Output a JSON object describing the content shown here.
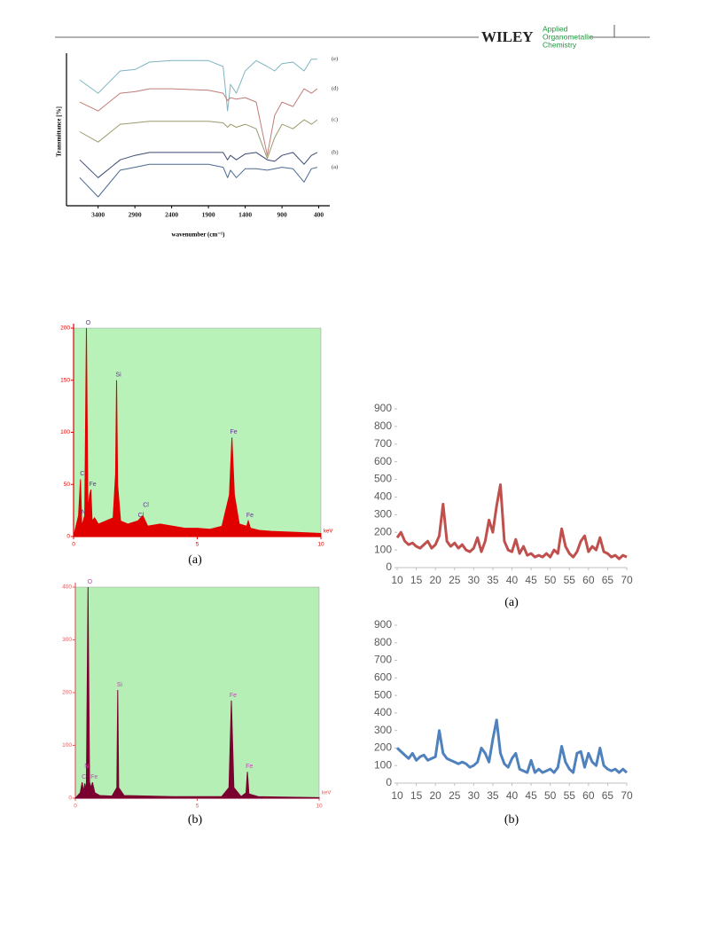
{
  "header": {
    "publisher": "WILEY",
    "journal": [
      "Applied",
      "Organometallic",
      "Chemistry"
    ]
  },
  "chart_data": [
    {
      "type": "line",
      "ylabel": "Transmittance [%]",
      "xlabel": "wavenumber (cm⁻¹)",
      "x": [
        3650,
        3400,
        3100,
        2900,
        2700,
        2400,
        1900,
        1700,
        1640,
        1600,
        1520,
        1400,
        1250,
        1100,
        1000,
        900,
        750,
        600,
        500,
        420
      ],
      "xlim": [
        3830,
        250
      ],
      "xticks": [
        3400,
        2900,
        2400,
        1900,
        1400,
        900,
        400
      ],
      "ylim": [
        0,
        100
      ],
      "series": [
        {
          "name": "(e)",
          "color": "#7fb4c2",
          "values": [
            85,
            76,
            91,
            92,
            97,
            98,
            98,
            94,
            64,
            82,
            76,
            91,
            98,
            94,
            91,
            96,
            97,
            91,
            99,
            99
          ]
        },
        {
          "name": "(d)",
          "color": "#c07c78",
          "values": [
            70,
            64,
            76,
            77,
            79,
            79,
            78,
            76,
            71,
            73,
            72,
            73,
            70,
            34,
            61,
            70,
            67,
            79,
            76,
            79
          ]
        },
        {
          "name": "(c)",
          "color": "#9c9a6c",
          "values": [
            50,
            43,
            55,
            56,
            57,
            57,
            57,
            56,
            53,
            55,
            53,
            55,
            52,
            32,
            46,
            55,
            52,
            58,
            55,
            58
          ]
        },
        {
          "name": "(b)",
          "color": "#3a4a72",
          "values": [
            31,
            19,
            31,
            34,
            36,
            36,
            36,
            36,
            31,
            34,
            31,
            35,
            36,
            31,
            30,
            34,
            36,
            28,
            34,
            36
          ]
        },
        {
          "name": "(a)",
          "color": "#4a6a92",
          "values": [
            19,
            6,
            24,
            26,
            28,
            28,
            28,
            26,
            19,
            24,
            19,
            25,
            25,
            24,
            25,
            26,
            25,
            16,
            25,
            26
          ]
        }
      ]
    },
    {
      "type": "area",
      "caption": "(a)",
      "xlabel": "keV",
      "background": "#b9f2b9",
      "axis_color": "#e00000",
      "label_color": "#6a2a9a",
      "x": [
        0,
        0.2,
        0.28,
        0.33,
        0.45,
        0.52,
        0.58,
        0.65,
        0.7,
        0.75,
        0.85,
        1.0,
        1.3,
        1.6,
        1.7,
        1.74,
        1.78,
        1.9,
        2.2,
        2.6,
        2.8,
        3.0,
        3.5,
        4.0,
        4.5,
        5.0,
        5.5,
        6.0,
        6.3,
        6.4,
        6.5,
        6.7,
        7.0,
        7.06,
        7.15,
        7.5,
        8.0,
        9.0,
        10.0
      ],
      "series": [
        {
          "color": "#e00000",
          "values": [
            0,
            20,
            55,
            10,
            20,
            200,
            25,
            40,
            45,
            15,
            18,
            12,
            15,
            18,
            60,
            150,
            50,
            15,
            12,
            15,
            20,
            10,
            12,
            10,
            8,
            8,
            7,
            10,
            40,
            95,
            40,
            12,
            10,
            15,
            8,
            6,
            5,
            4,
            3
          ]
        }
      ],
      "xlim": [
        0,
        10
      ],
      "xticks": [
        0,
        5,
        10
      ],
      "ylim": [
        0,
        200
      ],
      "yticks": [
        0,
        50,
        100,
        150,
        200
      ],
      "annotations": [
        {
          "text": "O",
          "x": 0.52,
          "y": 200
        },
        {
          "text": "C",
          "x": 0.28,
          "y": 55
        },
        {
          "text": "Fe",
          "x": 0.7,
          "y": 45
        },
        {
          "text": "N",
          "x": 0.33,
          "y": 18
        },
        {
          "text": "Si",
          "x": 1.74,
          "y": 150
        },
        {
          "text": "Cl",
          "x": 2.65,
          "y": 15
        },
        {
          "text": "Cl",
          "x": 2.85,
          "y": 25
        },
        {
          "text": "Fe",
          "x": 6.4,
          "y": 95
        },
        {
          "text": "Fe",
          "x": 7.06,
          "y": 15
        }
      ]
    },
    {
      "type": "area",
      "caption": "(b)",
      "xlabel": "keV",
      "background": "#b5efb5",
      "axis_color": "#e06060",
      "label_color": "#d040c0",
      "x": [
        0,
        0.2,
        0.28,
        0.33,
        0.39,
        0.45,
        0.52,
        0.58,
        0.65,
        0.7,
        0.8,
        1.0,
        1.5,
        1.7,
        1.74,
        1.78,
        2.0,
        3.0,
        4.0,
        5.0,
        6.0,
        6.3,
        6.4,
        6.5,
        6.8,
        7.0,
        7.06,
        7.12,
        7.5,
        8.5,
        10.0
      ],
      "series": [
        {
          "color": "#7a0030",
          "values": [
            0,
            10,
            30,
            12,
            28,
            15,
            400,
            30,
            20,
            30,
            10,
            5,
            4,
            20,
            205,
            20,
            5,
            4,
            3,
            3,
            3,
            20,
            185,
            20,
            3,
            10,
            50,
            8,
            3,
            2,
            1
          ]
        }
      ],
      "xlim": [
        0,
        10
      ],
      "xticks": [
        0,
        5,
        10
      ],
      "ylim": [
        0,
        400
      ],
      "yticks": [
        0,
        100,
        200,
        300,
        400
      ],
      "annotations": [
        {
          "text": "O",
          "x": 0.52,
          "y": 400
        },
        {
          "text": "N",
          "x": 0.39,
          "y": 50
        },
        {
          "text": "C",
          "x": 0.28,
          "y": 30
        },
        {
          "text": "Fe",
          "x": 0.7,
          "y": 30
        },
        {
          "text": "Si",
          "x": 1.74,
          "y": 205
        },
        {
          "text": "Fe",
          "x": 6.4,
          "y": 185
        },
        {
          "text": "Fe",
          "x": 7.06,
          "y": 50
        }
      ]
    },
    {
      "type": "line",
      "caption": "(a)",
      "x": [
        10,
        11,
        12,
        13,
        14,
        15,
        16,
        17,
        18,
        19,
        20,
        21,
        22,
        23,
        24,
        25,
        26,
        27,
        28,
        29,
        30,
        31,
        32,
        33,
        34,
        35,
        36,
        37,
        38,
        39,
        40,
        41,
        42,
        43,
        44,
        45,
        46,
        47,
        48,
        49,
        50,
        51,
        52,
        53,
        54,
        55,
        56,
        57,
        58,
        59,
        60,
        61,
        62,
        63,
        64,
        65,
        66,
        67,
        68,
        69,
        70
      ],
      "series": [
        {
          "color": "#c0504d",
          "values": [
            170,
            200,
            150,
            130,
            140,
            120,
            110,
            130,
            150,
            110,
            130,
            180,
            360,
            150,
            120,
            140,
            110,
            130,
            100,
            90,
            110,
            170,
            90,
            150,
            270,
            200,
            350,
            470,
            150,
            100,
            90,
            160,
            80,
            120,
            70,
            80,
            60,
            70,
            60,
            80,
            60,
            100,
            80,
            220,
            120,
            80,
            60,
            90,
            150,
            180,
            90,
            120,
            100,
            170,
            90,
            80,
            60,
            70,
            50,
            70,
            60
          ]
        }
      ],
      "xlim": [
        10,
        70
      ],
      "xticks": [
        10,
        15,
        20,
        25,
        30,
        35,
        40,
        45,
        50,
        55,
        60,
        65,
        70
      ],
      "ylim": [
        0,
        900
      ],
      "yticks": [
        0,
        100,
        200,
        300,
        400,
        500,
        600,
        700,
        800,
        900
      ]
    },
    {
      "type": "line",
      "caption": "(b)",
      "x": [
        10,
        11,
        12,
        13,
        14,
        15,
        16,
        17,
        18,
        19,
        20,
        21,
        22,
        23,
        24,
        25,
        26,
        27,
        28,
        29,
        30,
        31,
        32,
        33,
        34,
        35,
        36,
        37,
        38,
        39,
        40,
        41,
        42,
        43,
        44,
        45,
        46,
        47,
        48,
        49,
        50,
        51,
        52,
        53,
        54,
        55,
        56,
        57,
        58,
        59,
        60,
        61,
        62,
        63,
        64,
        65,
        66,
        67,
        68,
        69,
        70
      ],
      "series": [
        {
          "color": "#4f81bd",
          "values": [
            200,
            180,
            160,
            140,
            170,
            130,
            150,
            160,
            130,
            140,
            150,
            300,
            170,
            140,
            130,
            120,
            110,
            120,
            110,
            90,
            100,
            120,
            200,
            170,
            120,
            250,
            360,
            170,
            110,
            90,
            140,
            170,
            80,
            70,
            60,
            130,
            60,
            80,
            60,
            70,
            80,
            60,
            90,
            210,
            120,
            80,
            60,
            170,
            180,
            90,
            170,
            120,
            100,
            200,
            100,
            80,
            70,
            80,
            60,
            80,
            60
          ]
        }
      ],
      "xlim": [
        10,
        70
      ],
      "xticks": [
        10,
        15,
        20,
        25,
        30,
        35,
        40,
        45,
        50,
        55,
        60,
        65,
        70
      ],
      "ylim": [
        0,
        900
      ],
      "yticks": [
        0,
        100,
        200,
        300,
        400,
        500,
        600,
        700,
        800,
        900
      ]
    }
  ]
}
